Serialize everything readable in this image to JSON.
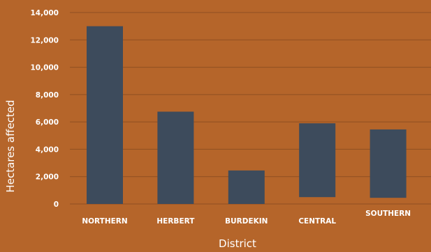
{
  "chart_data": {
    "type": "bar",
    "xlabel": "District",
    "ylabel": "Hectares affected",
    "categories": [
      "NORTHERN",
      "HERBERT",
      "BURDEKIN",
      "CENTRAL",
      "SOUTHERN"
    ],
    "series": [
      {
        "low": [
          0,
          0,
          0,
          500,
          450
        ],
        "values": [
          13000,
          6750,
          2450,
          5900,
          5450
        ]
      }
    ],
    "ylim": [
      0,
      14000
    ],
    "yticks": [
      0,
      2000,
      4000,
      6000,
      8000,
      10000,
      12000,
      14000
    ],
    "ytick_labels": [
      "0",
      "2,000",
      "4,000",
      "6,000",
      "8,000",
      "10,000",
      "12,000",
      "14,000"
    ],
    "grid": true,
    "colors": {
      "background": "#b5652a",
      "bar": "#3d4b5c",
      "grid": "#8f4f21",
      "text": "#ffffff"
    }
  }
}
